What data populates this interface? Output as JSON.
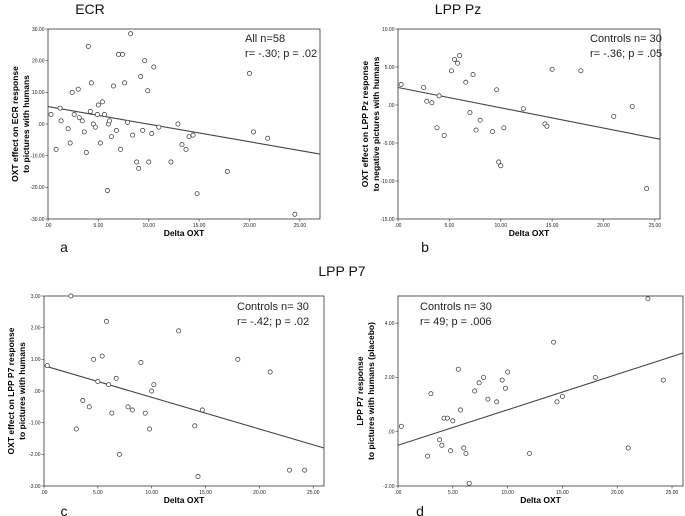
{
  "figure_title": "LPP P7",
  "chart_data": [
    {
      "type": "scatter",
      "title": "ECR",
      "panel_label": "a",
      "xlabel": "Delta OXT",
      "ylabel_lines": [
        "OXT effect on ECR response",
        "to pictures with humans"
      ],
      "xlim": [
        0,
        27
      ],
      "ylim": [
        -30,
        30
      ],
      "xticks": [
        0,
        5,
        10,
        15,
        20,
        25
      ],
      "xtick_labels": [
        ".00",
        "5.00",
        "10.00",
        "15.00",
        "20.00",
        "25.00"
      ],
      "yticks": [
        30,
        20,
        10,
        0,
        -10,
        -20,
        -30
      ],
      "ytick_labels": [
        "30.00",
        "20.00",
        "10.00",
        ".00",
        "-10.00",
        "-20.00",
        "-30.00"
      ],
      "annotation_lines": [
        "All n=58",
        "r= -.30; p = .02"
      ],
      "fit_line": {
        "x": [
          0,
          27
        ],
        "y": [
          5.5,
          -9.5
        ]
      },
      "x": [
        0.3,
        0.8,
        1.2,
        1.3,
        2.0,
        2.2,
        2.4,
        2.6,
        3.0,
        3.1,
        3.4,
        3.6,
        3.8,
        4.0,
        4.2,
        4.3,
        4.5,
        4.7,
        4.9,
        5.0,
        5.2,
        5.4,
        5.6,
        5.9,
        6.0,
        6.1,
        6.3,
        6.5,
        6.8,
        7.0,
        7.2,
        7.4,
        7.6,
        7.9,
        8.2,
        8.4,
        8.8,
        9.0,
        9.2,
        9.4,
        9.6,
        9.9,
        10.0,
        10.3,
        10.5,
        11.0,
        12.2,
        12.9,
        13.3,
        13.7,
        14.0,
        14.4,
        14.8,
        17.8,
        20.0,
        20.4,
        21.8,
        24.5
      ],
      "y": [
        3.0,
        -8.0,
        5.0,
        1.0,
        -1.5,
        -6.0,
        10.0,
        3.0,
        11.0,
        2.0,
        1.0,
        -2.5,
        -9.0,
        24.5,
        4.0,
        13.0,
        0.0,
        -1.0,
        3.0,
        6.0,
        -6.0,
        7.0,
        3.0,
        -21.0,
        0.0,
        1.0,
        -4.0,
        12.0,
        -2.0,
        22.0,
        -8.0,
        22.0,
        13.0,
        0.5,
        28.5,
        -3.5,
        -12.0,
        -14.0,
        15.0,
        -2.0,
        20.0,
        10.5,
        -12.0,
        -3.0,
        18.0,
        -1.0,
        -12.0,
        0.0,
        -6.5,
        -8.0,
        -4.0,
        -3.5,
        -22.0,
        -15.0,
        16.0,
        -2.5,
        -4.5,
        -28.5
      ]
    },
    {
      "type": "scatter",
      "title": "LPP Pz",
      "panel_label": "b",
      "xlabel": "Delta OXT",
      "ylabel_lines": [
        "OXT effect on LPP  Pz response",
        "to negative pictures with humans"
      ],
      "xlim": [
        0,
        25.5
      ],
      "ylim": [
        -15,
        10
      ],
      "xticks": [
        0,
        5,
        10,
        15,
        20,
        25
      ],
      "xtick_labels": [
        ".00",
        "5.00",
        "10.00",
        "15.00",
        "20.00",
        "25.00"
      ],
      "yticks": [
        10,
        5,
        0,
        -5,
        -10,
        -15
      ],
      "ytick_labels": [
        "10.00",
        "5.00",
        ".00",
        "-5.00",
        "-10.00",
        "-15.00"
      ],
      "annotation_lines": [
        "Controls n= 30",
        "r= -.36; p = .05"
      ],
      "fit_line": {
        "x": [
          0,
          25.5
        ],
        "y": [
          2.3,
          -4.5
        ]
      },
      "x": [
        0.3,
        2.5,
        2.8,
        3.3,
        3.8,
        4.0,
        4.5,
        5.2,
        5.5,
        5.8,
        6.0,
        6.6,
        7.0,
        7.3,
        7.6,
        8.0,
        9.2,
        9.6,
        9.8,
        10.0,
        10.3,
        12.2,
        14.3,
        14.5,
        15.0,
        17.8,
        21.0,
        22.8,
        24.2
      ],
      "y": [
        2.7,
        2.3,
        0.5,
        0.3,
        -3.0,
        1.2,
        -4.0,
        4.5,
        6.0,
        5.5,
        6.5,
        3.0,
        -1.0,
        4.0,
        -3.3,
        -2.0,
        -3.5,
        2.0,
        -7.5,
        -8.0,
        -3.0,
        -0.5,
        -2.5,
        -2.8,
        4.7,
        4.5,
        -1.5,
        -0.2,
        -11.0
      ]
    },
    {
      "type": "scatter",
      "title": "",
      "panel_label": "c",
      "xlabel": "Delta OXT",
      "ylabel_lines": [
        "OXT effect on LPP  P7 response",
        "to pictures with humans"
      ],
      "xlim": [
        0,
        26
      ],
      "ylim": [
        -3,
        3
      ],
      "xticks": [
        0,
        5,
        10,
        15,
        20,
        25
      ],
      "xtick_labels": [
        ".00",
        "5.00",
        "10.00",
        "15.00",
        "20.00",
        "25.00"
      ],
      "yticks": [
        3,
        2,
        1,
        0,
        -1,
        -2,
        -3
      ],
      "ytick_labels": [
        "3.00",
        "2.00",
        "1.00",
        ".00",
        "-1.00",
        "-2.00",
        "-3.00"
      ],
      "annotation_lines": [
        "Controls n= 30",
        "r= -.42; p = .02"
      ],
      "fit_line": {
        "x": [
          0,
          26
        ],
        "y": [
          0.8,
          -1.8
        ]
      },
      "x": [
        0.3,
        2.5,
        3.0,
        3.6,
        4.2,
        4.6,
        5.0,
        5.4,
        5.8,
        6.0,
        6.3,
        6.7,
        7.0,
        7.8,
        8.2,
        9.0,
        9.4,
        9.8,
        10.0,
        10.2,
        12.5,
        14.0,
        14.3,
        14.7,
        18.0,
        21.0,
        22.8,
        24.2
      ],
      "y": [
        0.8,
        3.0,
        -1.2,
        -0.3,
        -0.5,
        1.0,
        0.3,
        1.1,
        2.2,
        0.2,
        -0.7,
        0.4,
        -2.0,
        -0.5,
        -0.6,
        0.9,
        -0.7,
        -1.2,
        0.0,
        0.2,
        1.9,
        -1.1,
        -2.7,
        -0.6,
        1.0,
        0.6,
        -2.5,
        -2.5
      ]
    },
    {
      "type": "scatter",
      "title": "",
      "panel_label": "d",
      "xlabel": "Delta OXT",
      "ylabel_lines": [
        "LPP  P7  response",
        "to pictures with humans  (placebo)"
      ],
      "xlim": [
        0,
        26
      ],
      "ylim": [
        -2,
        5
      ],
      "xticks": [
        0,
        5,
        10,
        15,
        20,
        25
      ],
      "xtick_labels": [
        ".00",
        "5.00",
        "10.00",
        "15.00",
        "20.00",
        "25.00"
      ],
      "yticks": [
        4,
        2,
        0,
        -2
      ],
      "ytick_labels": [
        "4.00",
        "2.00",
        ".00",
        "-2.00"
      ],
      "annotation_lines": [
        "Controls n= 30",
        "r= 49; p = .006"
      ],
      "fit_line": {
        "x": [
          0,
          26
        ],
        "y": [
          -0.5,
          2.9
        ]
      },
      "x": [
        0.3,
        2.7,
        3.0,
        3.8,
        4.0,
        4.2,
        4.5,
        4.8,
        5.0,
        5.5,
        5.7,
        6.0,
        6.2,
        6.5,
        7.0,
        7.4,
        7.8,
        8.2,
        9.0,
        9.5,
        9.8,
        10.0,
        12.0,
        14.2,
        14.5,
        15.0,
        18.0,
        21.0,
        22.8,
        24.2
      ],
      "y": [
        0.2,
        -0.9,
        1.4,
        -0.3,
        -0.5,
        0.5,
        0.5,
        -0.7,
        0.4,
        2.3,
        0.8,
        -0.6,
        -0.8,
        -1.9,
        1.5,
        1.8,
        2.0,
        1.2,
        1.1,
        1.9,
        1.6,
        2.2,
        -0.8,
        3.3,
        1.1,
        1.3,
        2.0,
        -0.6,
        4.9,
        1.9
      ]
    }
  ]
}
